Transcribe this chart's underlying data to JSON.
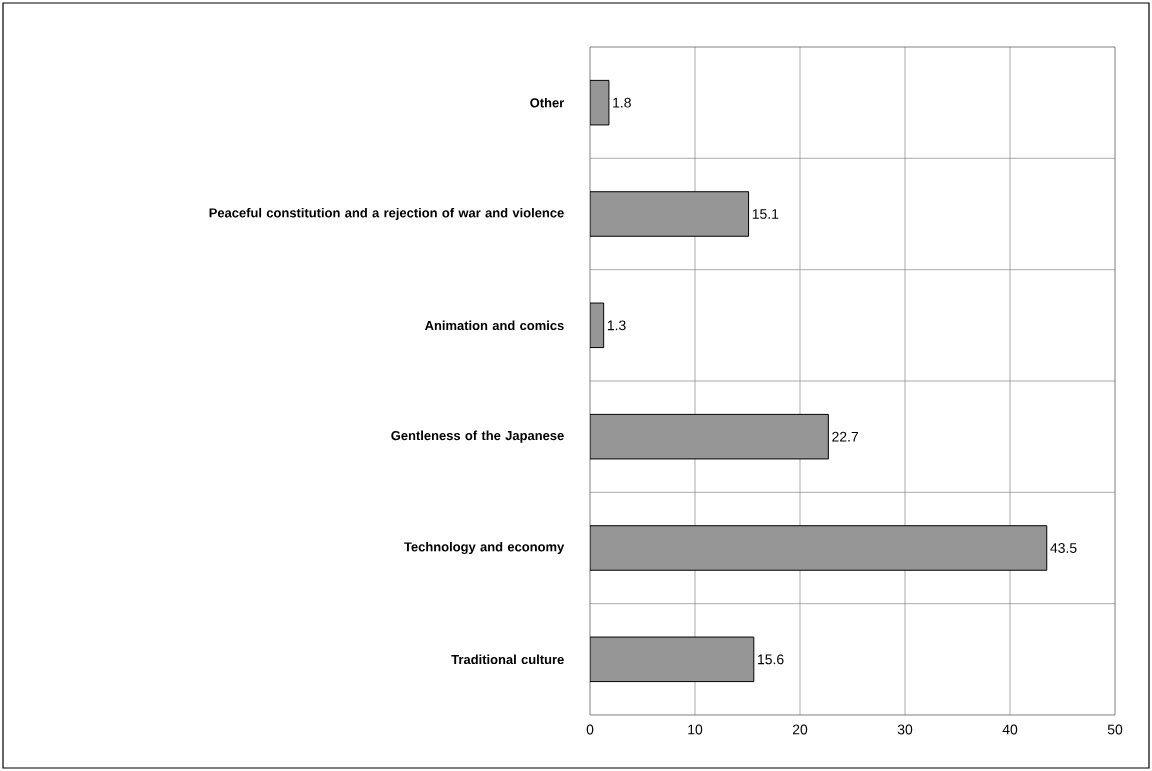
{
  "chart_data": {
    "type": "bar",
    "orientation": "horizontal",
    "categories": [
      "Other",
      "Peaceful constitution and a rejection of war and violence",
      "Animation and comics",
      "Gentleness of the Japanese",
      "Technology and economy",
      "Traditional culture"
    ],
    "values": [
      1.8,
      15.1,
      1.3,
      22.7,
      43.5,
      15.6
    ],
    "color": "#969696",
    "xlim": [
      0,
      50
    ],
    "xticks": [
      0,
      10,
      20,
      30,
      40,
      50
    ],
    "grid": true,
    "data_labels": true
  }
}
